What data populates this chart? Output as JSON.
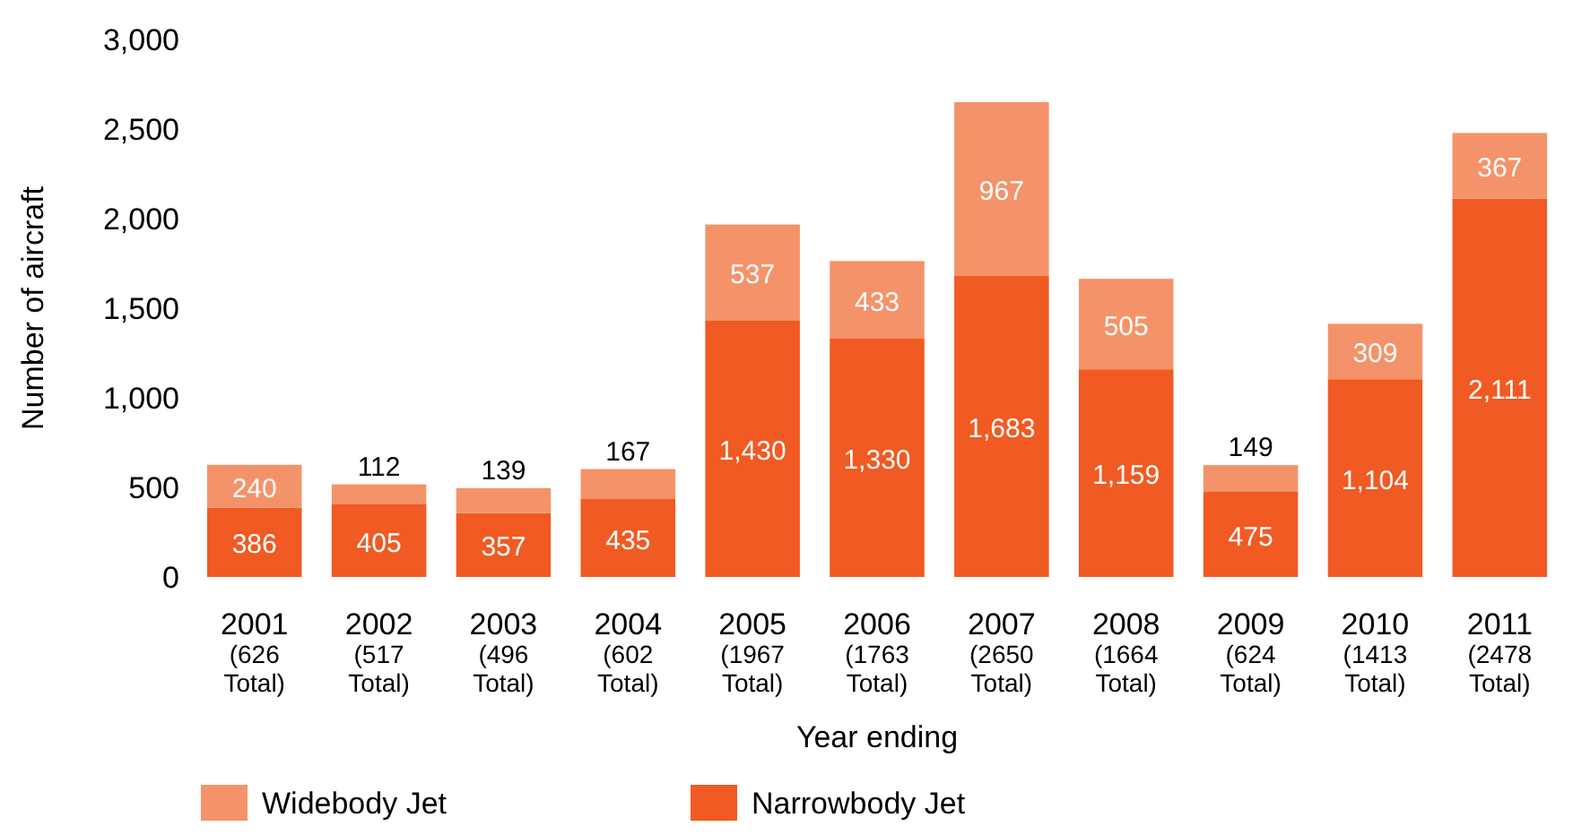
{
  "chart_data": {
    "type": "bar",
    "stacked": true,
    "xlabel": "Year ending",
    "ylabel": "Number of aircraft",
    "categories": [
      "2001\n(626\nTotal)",
      "2002\n(517\nTotal)",
      "2003\n(496\nTotal)",
      "2004\n(602\nTotal)",
      "2005\n(1967\nTotal)",
      "2006\n(1763\nTotal)",
      "2007\n(2650\nTotal)",
      "2008\n(1664\nTotal)",
      "2009\n(624\nTotal)",
      "2010\n(1413\nTotal)",
      "2011\n(2478\nTotal)"
    ],
    "series": [
      {
        "name": "Narrowbody Jet",
        "color": "#f15a22",
        "values": [
          386,
          405,
          357,
          435,
          1430,
          1330,
          1683,
          1159,
          475,
          1104,
          2111
        ],
        "value_labels": [
          "386",
          "405",
          "357",
          "435",
          "1,430",
          "1,330",
          "1,683",
          "1,159",
          "475",
          "1,104",
          "2,111"
        ]
      },
      {
        "name": "Widebody Jet",
        "color": "#f4936a",
        "values": [
          240,
          112,
          139,
          167,
          537,
          433,
          967,
          505,
          149,
          309,
          367
        ],
        "value_labels": [
          "240",
          "112",
          "139",
          "167",
          "537",
          "433",
          "967",
          "505",
          "149",
          "309",
          "367"
        ]
      }
    ],
    "ylim": [
      0,
      3000
    ],
    "yticks": [
      0,
      {
        "value": 500,
        "label": "500"
      },
      {
        "value": 1000,
        "label": "1,000"
      },
      {
        "value": 1500,
        "label": "1,500"
      },
      {
        "value": 2000,
        "label": "2,000"
      },
      {
        "value": 2500,
        "label": "2,500"
      },
      {
        "value": 3000,
        "label": "3,000"
      }
    ],
    "legend": "bottom",
    "grid": false
  }
}
